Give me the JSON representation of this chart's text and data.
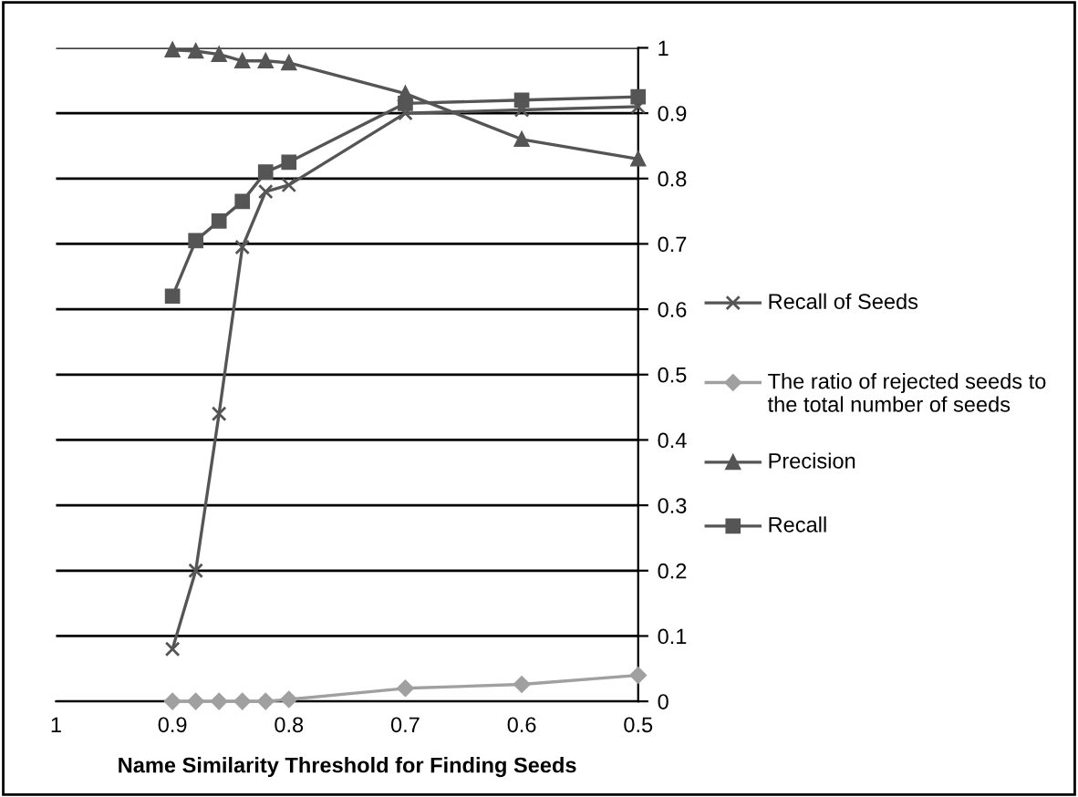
{
  "chart_data": {
    "type": "line",
    "xlabel": "Name Similarity Threshold for Finding Seeds",
    "x": [
      0.9,
      0.88,
      0.86,
      0.84,
      0.82,
      0.8,
      0.7,
      0.6,
      0.5
    ],
    "xlim": [
      1,
      0.5
    ],
    "xticks": [
      1,
      0.9,
      0.8,
      0.7,
      0.6,
      0.5
    ],
    "ylim": [
      0,
      1
    ],
    "yticks": [
      0,
      0.1,
      0.2,
      0.3,
      0.4,
      0.5,
      0.6,
      0.7,
      0.8,
      0.9,
      1
    ],
    "grid": "y",
    "legend": "right",
    "series": [
      {
        "name": "Recall of Seeds",
        "color": "#555555",
        "marker": "cross",
        "values": [
          0.08,
          0.2,
          0.44,
          0.695,
          0.78,
          0.79,
          0.9,
          0.905,
          0.91
        ]
      },
      {
        "name": "The ratio of rejected seeds to the total number of seeds",
        "color": "#a0a0a0",
        "marker": "diamond",
        "values": [
          0,
          0,
          0,
          0,
          0,
          0.003,
          0.02,
          0.026,
          0.04
        ]
      },
      {
        "name": "Precision",
        "color": "#555555",
        "marker": "triangle",
        "values": [
          0.997,
          0.995,
          0.99,
          0.98,
          0.98,
          0.977,
          0.93,
          0.86,
          0.83
        ]
      },
      {
        "name": "Recall",
        "color": "#555555",
        "marker": "square",
        "values": [
          0.62,
          0.705,
          0.735,
          0.765,
          0.81,
          0.825,
          0.915,
          0.92,
          0.925
        ]
      }
    ]
  }
}
